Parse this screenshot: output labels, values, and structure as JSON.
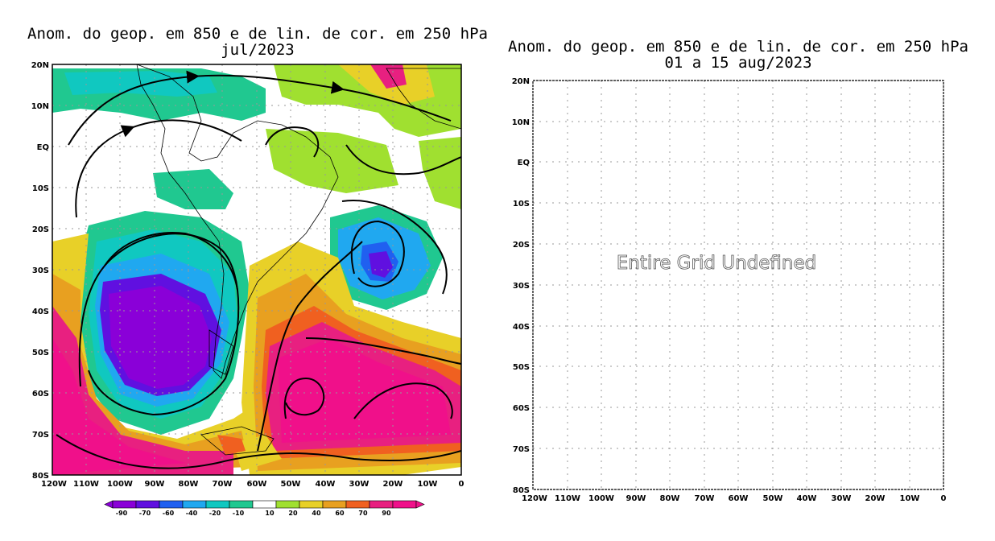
{
  "left_panel": {
    "title_line1": "Anom. do geop. em 850 e de lin. de cor. em 250 hPa",
    "title_line2": "jul/2023",
    "lat_labels": [
      "20N",
      "10N",
      "EQ",
      "10S",
      "20S",
      "30S",
      "40S",
      "50S",
      "60S",
      "70S",
      "80S"
    ],
    "lon_labels": [
      "120W",
      "110W",
      "100W",
      "90W",
      "80W",
      "70W",
      "60W",
      "50W",
      "40W",
      "30W",
      "20W",
      "10W",
      "0"
    ],
    "colorbar": {
      "labels": [
        "-90",
        "-70",
        "-60",
        "-40",
        "-20",
        "-10",
        "10",
        "20",
        "40",
        "60",
        "70",
        "90"
      ],
      "colors": [
        "#8a00d8",
        "#6010e0",
        "#2060f0",
        "#20a8f0",
        "#10c8c0",
        "#20c890",
        "#ffffff",
        "#a0e030",
        "#e8d028",
        "#e8a020",
        "#f06020",
        "#e82080",
        "#f0108a"
      ]
    }
  },
  "right_panel": {
    "title_line1": "Anom. do geop. em 850 e de lin. de cor. em 250 hPa",
    "title_line2": "01 a 15 aug/2023",
    "message": "Entire Grid Undefined",
    "lat_labels": [
      "20N",
      "10N",
      "EQ",
      "10S",
      "20S",
      "30S",
      "40S",
      "50S",
      "60S",
      "70S",
      "80S"
    ],
    "lon_labels": [
      "120W",
      "110W",
      "100W",
      "90W",
      "80W",
      "70W",
      "60W",
      "50W",
      "40W",
      "30W",
      "20W",
      "10W",
      "0"
    ]
  }
}
